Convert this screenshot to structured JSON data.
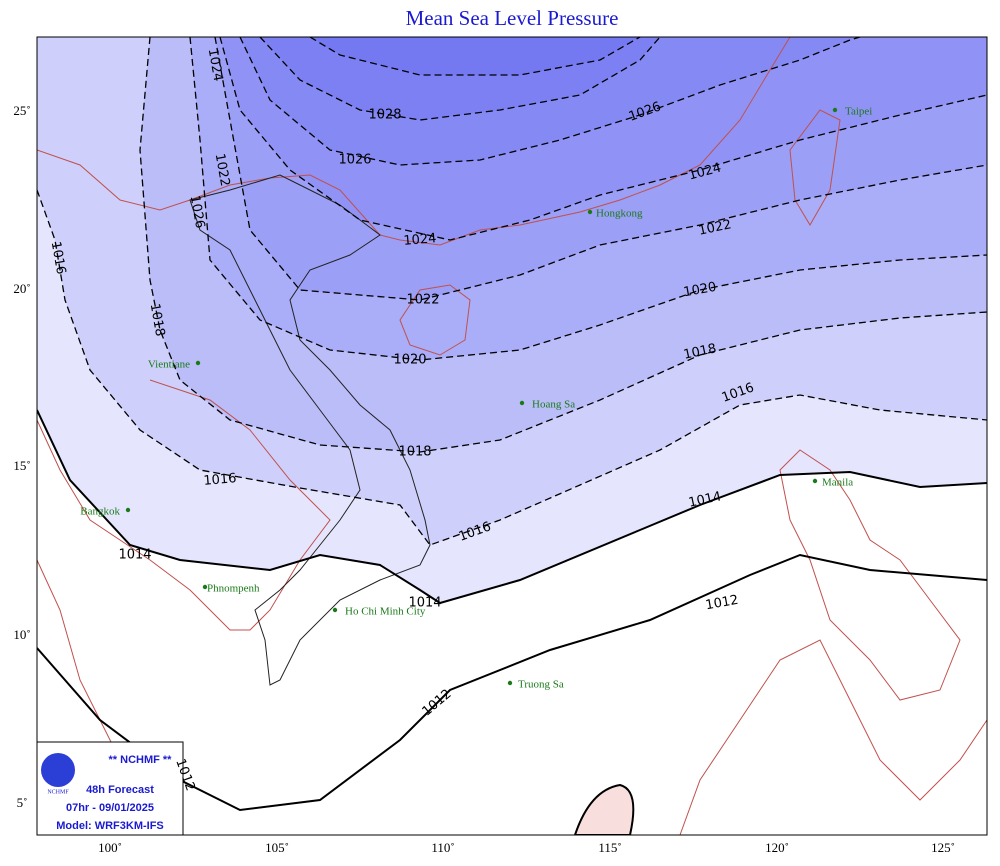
{
  "title": "Mean Sea Level Pressure",
  "lon_labels": [
    "100˚",
    "105˚",
    "110˚",
    "115˚",
    "120˚",
    "125˚"
  ],
  "lat_labels": [
    "25˚",
    "20˚",
    "15˚",
    "10˚",
    "5˚"
  ],
  "contour_labels": [
    "1024",
    "1028",
    "1026",
    "1022",
    "1026",
    "1024",
    "1022",
    "1020",
    "1018",
    "1016",
    "1016",
    "1018",
    "1024",
    "1022",
    "1020",
    "1018",
    "1016",
    "1016",
    "1014",
    "1014",
    "1014",
    "1012",
    "1012",
    "1012",
    "1026"
  ],
  "cities": [
    "Taipei",
    "Hongkong",
    "Vientiane",
    "Hoang Sa",
    "Manila",
    "Bangkok",
    "Phnompenh",
    "Ho Chi Minh City",
    "Truong Sa"
  ],
  "info_box": {
    "agency": "** NCHMF **",
    "logo": "NCHMF",
    "forecast": "48h Forecast",
    "time": "07hr - 09/01/2025",
    "model": "Model: WRF3KM-IFS"
  }
}
